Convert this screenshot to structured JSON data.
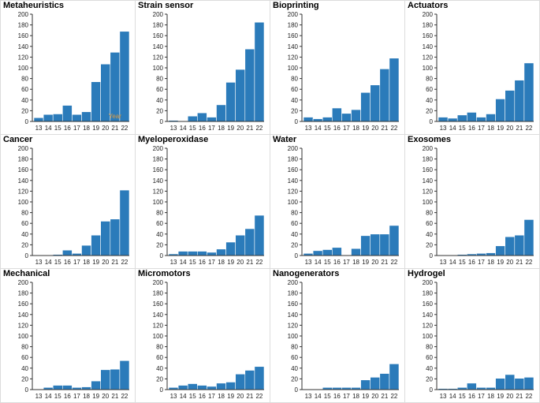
{
  "chart_data": [
    {
      "type": "bar",
      "title": "Metaheuristics",
      "categories": [
        "13",
        "14",
        "15",
        "16",
        "17",
        "18",
        "19",
        "20",
        "21",
        "22"
      ],
      "values": [
        7,
        13,
        14,
        30,
        13,
        18,
        74,
        107,
        129,
        168
      ],
      "ylim": [
        0,
        200
      ],
      "yticks": [
        0,
        20,
        40,
        60,
        80,
        100,
        120,
        140,
        160,
        180,
        200
      ],
      "annotation": "Year"
    },
    {
      "type": "bar",
      "title": "Strain sensor",
      "categories": [
        "13",
        "14",
        "15",
        "16",
        "17",
        "18",
        "19",
        "20",
        "21",
        "22"
      ],
      "values": [
        2,
        1,
        10,
        16,
        8,
        31,
        73,
        97,
        135,
        185
      ],
      "ylim": [
        0,
        200
      ],
      "yticks": [
        0,
        20,
        40,
        60,
        80,
        100,
        120,
        140,
        160,
        180,
        200
      ]
    },
    {
      "type": "bar",
      "title": "Bioprinting",
      "categories": [
        "13",
        "14",
        "15",
        "16",
        "17",
        "18",
        "19",
        "20",
        "21",
        "22"
      ],
      "values": [
        8,
        5,
        8,
        25,
        15,
        22,
        54,
        68,
        98,
        118
      ],
      "ylim": [
        0,
        200
      ],
      "yticks": [
        0,
        20,
        40,
        60,
        80,
        100,
        120,
        140,
        160,
        180,
        200
      ]
    },
    {
      "type": "bar",
      "title": "Actuators",
      "categories": [
        "13",
        "14",
        "15",
        "16",
        "17",
        "18",
        "19",
        "20",
        "21",
        "22"
      ],
      "values": [
        8,
        6,
        12,
        17,
        8,
        14,
        42,
        58,
        77,
        109
      ],
      "ylim": [
        0,
        200
      ],
      "yticks": [
        0,
        20,
        40,
        60,
        80,
        100,
        120,
        140,
        160,
        180,
        200
      ]
    },
    {
      "type": "bar",
      "title": "Cancer",
      "categories": [
        "13",
        "14",
        "15",
        "16",
        "17",
        "18",
        "19",
        "20",
        "21",
        "22"
      ],
      "values": [
        0,
        0,
        2,
        10,
        4,
        19,
        38,
        64,
        68,
        122
      ],
      "ylim": [
        0,
        200
      ],
      "yticks": [
        0,
        20,
        40,
        60,
        80,
        100,
        120,
        140,
        160,
        180,
        200
      ]
    },
    {
      "type": "bar",
      "title": "Myeloperoxidase",
      "categories": [
        "13",
        "14",
        "15",
        "16",
        "17",
        "18",
        "19",
        "20",
        "21",
        "22"
      ],
      "values": [
        3,
        8,
        8,
        8,
        6,
        12,
        25,
        38,
        50,
        75
      ],
      "ylim": [
        0,
        200
      ],
      "yticks": [
        0,
        20,
        40,
        60,
        80,
        100,
        120,
        140,
        160,
        180,
        200
      ]
    },
    {
      "type": "bar",
      "title": "Water",
      "categories": [
        "13",
        "14",
        "15",
        "16",
        "17",
        "18",
        "19",
        "20",
        "21",
        "22"
      ],
      "values": [
        4,
        9,
        11,
        15,
        0,
        13,
        37,
        40,
        40,
        56
      ],
      "ylim": [
        0,
        200
      ],
      "yticks": [
        0,
        20,
        40,
        60,
        80,
        100,
        120,
        140,
        160,
        180,
        200
      ]
    },
    {
      "type": "bar",
      "title": "Exosomes",
      "categories": [
        "13",
        "14",
        "15",
        "16",
        "17",
        "18",
        "19",
        "20",
        "21",
        "22"
      ],
      "values": [
        0,
        0,
        2,
        3,
        4,
        5,
        18,
        35,
        38,
        67
      ],
      "ylim": [
        0,
        200
      ],
      "yticks": [
        0,
        20,
        40,
        60,
        80,
        100,
        120,
        140,
        160,
        180,
        200
      ]
    },
    {
      "type": "bar",
      "title": "Mechanical",
      "categories": [
        "13",
        "14",
        "15",
        "16",
        "17",
        "18",
        "19",
        "20",
        "21",
        "22"
      ],
      "values": [
        0,
        4,
        8,
        8,
        4,
        5,
        16,
        37,
        38,
        54
      ],
      "ylim": [
        0,
        200
      ],
      "yticks": [
        0,
        20,
        40,
        60,
        80,
        100,
        120,
        140,
        160,
        180,
        200
      ]
    },
    {
      "type": "bar",
      "title": "Micromotors",
      "categories": [
        "13",
        "14",
        "15",
        "16",
        "17",
        "18",
        "19",
        "20",
        "21",
        "22"
      ],
      "values": [
        4,
        8,
        11,
        8,
        6,
        12,
        14,
        29,
        36,
        43
      ],
      "ylim": [
        0,
        200
      ],
      "yticks": [
        0,
        20,
        40,
        60,
        80,
        100,
        120,
        140,
        160,
        180,
        200
      ]
    },
    {
      "type": "bar",
      "title": "Nanogenerators",
      "categories": [
        "13",
        "14",
        "15",
        "16",
        "17",
        "18",
        "19",
        "20",
        "21",
        "22"
      ],
      "values": [
        0,
        0,
        4,
        4,
        4,
        4,
        18,
        23,
        30,
        48
      ],
      "ylim": [
        0,
        200
      ],
      "yticks": [
        0,
        20,
        40,
        60,
        80,
        100,
        120,
        140,
        160,
        180,
        200
      ]
    },
    {
      "type": "bar",
      "title": "Hydrogel",
      "categories": [
        "13",
        "14",
        "15",
        "16",
        "17",
        "18",
        "19",
        "20",
        "21",
        "22"
      ],
      "values": [
        2,
        2,
        4,
        12,
        4,
        4,
        21,
        28,
        21,
        23
      ],
      "ylim": [
        0,
        200
      ],
      "yticks": [
        0,
        20,
        40,
        60,
        80,
        100,
        120,
        140,
        160,
        180,
        200
      ]
    }
  ],
  "colors": {
    "bar": "#2b7bba",
    "axis": "#333333",
    "annotation": "#e09a3c"
  }
}
